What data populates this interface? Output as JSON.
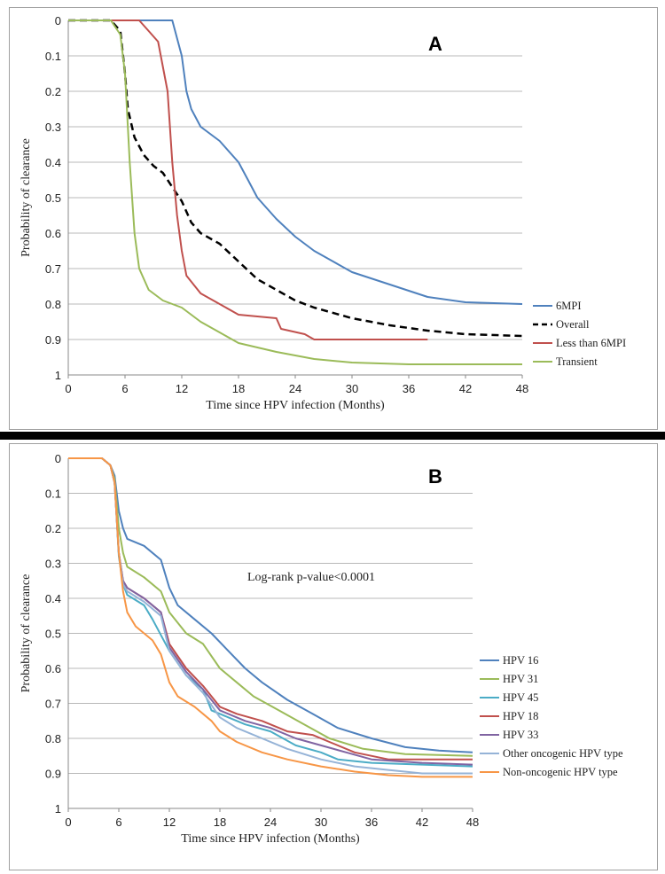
{
  "chart_data": [
    {
      "type": "line",
      "panel_label": "A",
      "xlabel": "Time since HPV infection (Months)",
      "ylabel": "Probability of clearance",
      "xlim": [
        0,
        48
      ],
      "ylim": [
        0,
        1
      ],
      "y_inverted": true,
      "x_ticks": [
        "0",
        "6",
        "12",
        "18",
        "24",
        "30",
        "36",
        "42",
        "48"
      ],
      "y_ticks": [
        "0",
        "0.1",
        "0.2",
        "0.3",
        "0.4",
        "0.5",
        "0.6",
        "0.7",
        "0.8",
        "0.9",
        "1"
      ],
      "grid": true,
      "legend_position": "right",
      "series": [
        {
          "name": "6MPI",
          "color": "#4f81bd",
          "dash": false,
          "points": [
            [
              0,
              0
            ],
            [
              11,
              0
            ],
            [
              12,
              0.1
            ],
            [
              12.5,
              0.2
            ],
            [
              13,
              0.25
            ],
            [
              14,
              0.3
            ],
            [
              16,
              0.34
            ],
            [
              18,
              0.4
            ],
            [
              19,
              0.45
            ],
            [
              20,
              0.5
            ],
            [
              22,
              0.56
            ],
            [
              24,
              0.61
            ],
            [
              26,
              0.65
            ],
            [
              28,
              0.68
            ],
            [
              30,
              0.71
            ],
            [
              34,
              0.745
            ],
            [
              38,
              0.78
            ],
            [
              42,
              0.795
            ],
            [
              48,
              0.8
            ]
          ]
        },
        {
          "name": "Overall",
          "color": "#000000",
          "dash": true,
          "points": [
            [
              0,
              0
            ],
            [
              4.5,
              0
            ],
            [
              5.5,
              0.03
            ],
            [
              6,
              0.15
            ],
            [
              6.3,
              0.25
            ],
            [
              7,
              0.33
            ],
            [
              8,
              0.38
            ],
            [
              9,
              0.41
            ],
            [
              10,
              0.43
            ],
            [
              11,
              0.47
            ],
            [
              12,
              0.51
            ],
            [
              13,
              0.57
            ],
            [
              14,
              0.6
            ],
            [
              16,
              0.63
            ],
            [
              18,
              0.68
            ],
            [
              20,
              0.73
            ],
            [
              22,
              0.76
            ],
            [
              24,
              0.79
            ],
            [
              26,
              0.81
            ],
            [
              30,
              0.84
            ],
            [
              34,
              0.86
            ],
            [
              38,
              0.875
            ],
            [
              42,
              0.885
            ],
            [
              48,
              0.89
            ]
          ]
        },
        {
          "name": "Less than 6MPI",
          "color": "#c0504d",
          "dash": false,
          "points": [
            [
              0,
              0
            ],
            [
              7.5,
              0
            ],
            [
              8.5,
              0.03
            ],
            [
              9.5,
              0.06
            ],
            [
              10.5,
              0.2
            ],
            [
              11,
              0.4
            ],
            [
              11.5,
              0.55
            ],
            [
              12,
              0.65
            ],
            [
              12.5,
              0.72
            ],
            [
              14,
              0.77
            ],
            [
              16,
              0.8
            ],
            [
              18,
              0.83
            ],
            [
              20,
              0.835
            ],
            [
              22,
              0.84
            ],
            [
              22.5,
              0.87
            ],
            [
              25,
              0.885
            ],
            [
              26,
              0.9
            ],
            [
              38,
              0.9
            ]
          ]
        },
        {
          "name": "Transient",
          "color": "#9bbb59",
          "dash": false,
          "points": [
            [
              0,
              0
            ],
            [
              4.5,
              0
            ],
            [
              5.5,
              0.04
            ],
            [
              6,
              0.15
            ],
            [
              6.5,
              0.4
            ],
            [
              7,
              0.6
            ],
            [
              7.5,
              0.7
            ],
            [
              8.5,
              0.76
            ],
            [
              10,
              0.79
            ],
            [
              12,
              0.81
            ],
            [
              14,
              0.85
            ],
            [
              16,
              0.88
            ],
            [
              18,
              0.91
            ],
            [
              22,
              0.935
            ],
            [
              26,
              0.955
            ],
            [
              30,
              0.965
            ],
            [
              36,
              0.97
            ],
            [
              48,
              0.97
            ]
          ]
        }
      ]
    },
    {
      "type": "line",
      "panel_label": "B",
      "xlabel": "Time since HPV infection (Months)",
      "ylabel": "Probability of clearance",
      "xlim": [
        0,
        48
      ],
      "ylim": [
        0,
        1
      ],
      "y_inverted": true,
      "x_ticks": [
        "0",
        "6",
        "12",
        "18",
        "24",
        "30",
        "36",
        "42",
        "48"
      ],
      "y_ticks": [
        "0",
        "0.1",
        "0.2",
        "0.3",
        "0.4",
        "0.5",
        "0.6",
        "0.7",
        "0.8",
        "0.9",
        "1"
      ],
      "grid": true,
      "legend_position": "right",
      "annotation": "Log-rank p-value<0.0001",
      "series": [
        {
          "name": "HPV 16",
          "color": "#4f81bd",
          "points": [
            [
              0,
              0
            ],
            [
              4,
              0
            ],
            [
              5,
              0.02
            ],
            [
              5.5,
              0.05
            ],
            [
              6,
              0.15
            ],
            [
              6.5,
              0.2
            ],
            [
              7,
              0.23
            ],
            [
              9,
              0.25
            ],
            [
              11,
              0.29
            ],
            [
              12,
              0.37
            ],
            [
              13,
              0.42
            ],
            [
              15,
              0.46
            ],
            [
              17,
              0.5
            ],
            [
              19,
              0.55
            ],
            [
              21,
              0.6
            ],
            [
              23,
              0.64
            ],
            [
              26,
              0.69
            ],
            [
              29,
              0.73
            ],
            [
              32,
              0.77
            ],
            [
              36,
              0.8
            ],
            [
              40,
              0.825
            ],
            [
              44,
              0.835
            ],
            [
              48,
              0.84
            ]
          ]
        },
        {
          "name": "HPV 31",
          "color": "#9bbb59",
          "points": [
            [
              0,
              0
            ],
            [
              4,
              0
            ],
            [
              5,
              0.02
            ],
            [
              5.5,
              0.06
            ],
            [
              6,
              0.2
            ],
            [
              6.5,
              0.27
            ],
            [
              7,
              0.31
            ],
            [
              9,
              0.34
            ],
            [
              11,
              0.38
            ],
            [
              12,
              0.44
            ],
            [
              14,
              0.5
            ],
            [
              16,
              0.53
            ],
            [
              18,
              0.6
            ],
            [
              20,
              0.64
            ],
            [
              22,
              0.68
            ],
            [
              25,
              0.72
            ],
            [
              28,
              0.76
            ],
            [
              31,
              0.8
            ],
            [
              35,
              0.83
            ],
            [
              40,
              0.845
            ],
            [
              48,
              0.85
            ]
          ]
        },
        {
          "name": "HPV 45",
          "color": "#4bacc6",
          "points": [
            [
              0,
              0
            ],
            [
              4,
              0
            ],
            [
              5,
              0.02
            ],
            [
              5.5,
              0.07
            ],
            [
              6,
              0.28
            ],
            [
              6.5,
              0.36
            ],
            [
              7,
              0.39
            ],
            [
              9,
              0.42
            ],
            [
              10,
              0.46
            ],
            [
              12,
              0.55
            ],
            [
              14,
              0.62
            ],
            [
              16,
              0.66
            ],
            [
              17,
              0.72
            ],
            [
              19,
              0.74
            ],
            [
              21,
              0.76
            ],
            [
              24,
              0.78
            ],
            [
              27,
              0.82
            ],
            [
              30,
              0.84
            ],
            [
              32,
              0.86
            ],
            [
              36,
              0.87
            ],
            [
              42,
              0.875
            ],
            [
              48,
              0.88
            ]
          ]
        },
        {
          "name": "HPV 18",
          "color": "#c0504d",
          "points": [
            [
              0,
              0
            ],
            [
              4,
              0
            ],
            [
              5,
              0.02
            ],
            [
              5.5,
              0.07
            ],
            [
              6,
              0.27
            ],
            [
              6.5,
              0.35
            ],
            [
              7,
              0.37
            ],
            [
              9,
              0.4
            ],
            [
              11,
              0.44
            ],
            [
              12,
              0.53
            ],
            [
              14,
              0.6
            ],
            [
              16,
              0.65
            ],
            [
              18,
              0.71
            ],
            [
              20,
              0.73
            ],
            [
              23,
              0.75
            ],
            [
              26,
              0.78
            ],
            [
              29,
              0.79
            ],
            [
              31,
              0.81
            ],
            [
              34,
              0.84
            ],
            [
              38,
              0.86
            ],
            [
              48,
              0.86
            ]
          ]
        },
        {
          "name": "HPV 33",
          "color": "#8064a2",
          "points": [
            [
              0,
              0
            ],
            [
              4,
              0
            ],
            [
              5,
              0.02
            ],
            [
              5.5,
              0.07
            ],
            [
              6,
              0.27
            ],
            [
              6.5,
              0.35
            ],
            [
              7,
              0.37
            ],
            [
              9,
              0.4
            ],
            [
              11,
              0.44
            ],
            [
              12,
              0.54
            ],
            [
              14,
              0.61
            ],
            [
              16,
              0.66
            ],
            [
              18,
              0.72
            ],
            [
              21,
              0.75
            ],
            [
              24,
              0.77
            ],
            [
              27,
              0.8
            ],
            [
              30,
              0.82
            ],
            [
              33,
              0.84
            ],
            [
              36,
              0.86
            ],
            [
              42,
              0.87
            ],
            [
              48,
              0.875
            ]
          ]
        },
        {
          "name": "Other oncogenic HPV type",
          "color": "#95b3d7",
          "points": [
            [
              0,
              0
            ],
            [
              4,
              0
            ],
            [
              5,
              0.02
            ],
            [
              5.5,
              0.07
            ],
            [
              6,
              0.27
            ],
            [
              6.5,
              0.36
            ],
            [
              7,
              0.38
            ],
            [
              9,
              0.41
            ],
            [
              11,
              0.45
            ],
            [
              12,
              0.55
            ],
            [
              14,
              0.62
            ],
            [
              16,
              0.67
            ],
            [
              18,
              0.74
            ],
            [
              20,
              0.77
            ],
            [
              23,
              0.8
            ],
            [
              26,
              0.83
            ],
            [
              30,
              0.86
            ],
            [
              34,
              0.88
            ],
            [
              38,
              0.89
            ],
            [
              42,
              0.9
            ],
            [
              48,
              0.9
            ]
          ]
        },
        {
          "name": "Non-oncogenic HPV type",
          "color": "#f79646",
          "points": [
            [
              0,
              0
            ],
            [
              4,
              0
            ],
            [
              5,
              0.02
            ],
            [
              5.5,
              0.07
            ],
            [
              6,
              0.27
            ],
            [
              6.5,
              0.38
            ],
            [
              7,
              0.44
            ],
            [
              8,
              0.48
            ],
            [
              10,
              0.52
            ],
            [
              11,
              0.56
            ],
            [
              12,
              0.64
            ],
            [
              13,
              0.68
            ],
            [
              15,
              0.71
            ],
            [
              17,
              0.75
            ],
            [
              18,
              0.78
            ],
            [
              20,
              0.81
            ],
            [
              23,
              0.84
            ],
            [
              26,
              0.86
            ],
            [
              30,
              0.88
            ],
            [
              34,
              0.895
            ],
            [
              38,
              0.905
            ],
            [
              42,
              0.91
            ],
            [
              48,
              0.91
            ]
          ]
        }
      ]
    }
  ]
}
